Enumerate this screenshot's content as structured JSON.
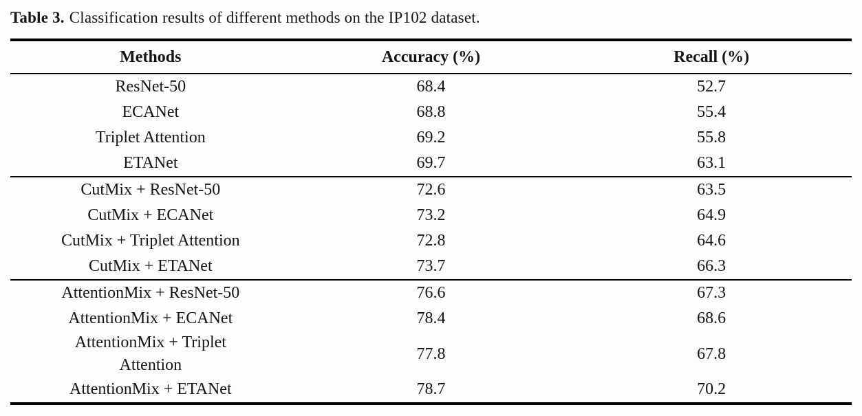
{
  "page": {
    "background": "#fdfdfd",
    "text_color": "#141414",
    "rule_color": "#000000"
  },
  "caption": {
    "label": "Table 3.",
    "text": "Classification results of different methods on the IP102 dataset."
  },
  "table": {
    "columns": [
      {
        "label": "Methods"
      },
      {
        "label": "Accuracy (%)"
      },
      {
        "label": "Recall (%)"
      }
    ],
    "groups": [
      {
        "rows": [
          {
            "method": "ResNet-50",
            "accuracy": "68.4",
            "recall": "52.7"
          },
          {
            "method": "ECANet",
            "accuracy": "68.8",
            "recall": "55.4"
          },
          {
            "method": "Triplet Attention",
            "accuracy": "69.2",
            "recall": "55.8"
          },
          {
            "method": "ETANet",
            "accuracy": "69.7",
            "recall": "63.1"
          }
        ]
      },
      {
        "rows": [
          {
            "method": "CutMix + ResNet-50",
            "accuracy": "72.6",
            "recall": "63.5"
          },
          {
            "method": "CutMix + ECANet",
            "accuracy": "73.2",
            "recall": "64.9"
          },
          {
            "method": "CutMix + Triplet Attention",
            "accuracy": "72.8",
            "recall": "64.6"
          },
          {
            "method": "CutMix + ETANet",
            "accuracy": "73.7",
            "recall": "66.3"
          }
        ]
      },
      {
        "rows": [
          {
            "method": "AttentionMix + ResNet-50",
            "accuracy": "76.6",
            "recall": "67.3"
          },
          {
            "method": "AttentionMix + ECANet",
            "accuracy": "78.4",
            "recall": "68.6"
          },
          {
            "method": "AttentionMix + Triplet\nAttention",
            "accuracy": "77.8",
            "recall": "67.8"
          },
          {
            "method": "AttentionMix + ETANet",
            "accuracy": "78.7",
            "recall": "70.2"
          }
        ]
      }
    ]
  }
}
